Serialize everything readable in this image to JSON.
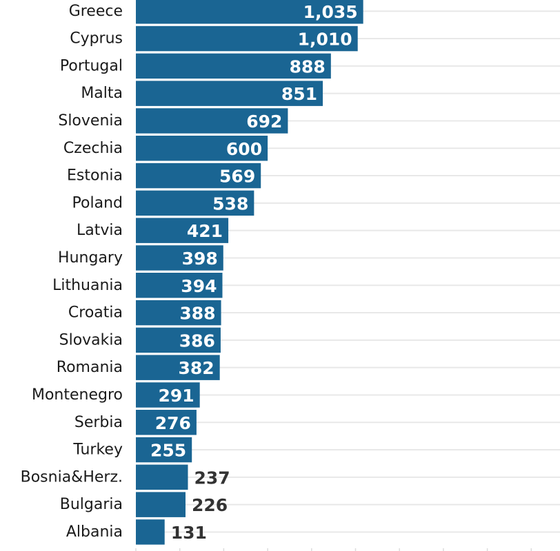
{
  "chart_data": {
    "type": "bar",
    "orientation": "horizontal",
    "title": "",
    "xlabel": "",
    "ylabel": "",
    "xlim": [
      0,
      1920
    ],
    "grid": true,
    "bar_color": "#1a6593",
    "label_inside_color": "#ffffff",
    "label_outside_color": "#333333",
    "categories": [
      "Greece",
      "Cyprus",
      "Portugal",
      "Malta",
      "Slovenia",
      "Czechia",
      "Estonia",
      "Poland",
      "Latvia",
      "Hungary",
      "Lithuania",
      "Croatia",
      "Slovakia",
      "Romania",
      "Montenegro",
      "Serbia",
      "Turkey",
      "Bosnia&Herz.",
      "Bulgaria",
      "Albania"
    ],
    "values": [
      1035,
      1010,
      888,
      851,
      692,
      600,
      569,
      538,
      421,
      398,
      394,
      388,
      386,
      382,
      291,
      276,
      255,
      237,
      226,
      131
    ],
    "value_labels": [
      "1,035",
      "1,010",
      "888",
      "851",
      "692",
      "600",
      "569",
      "538",
      "421",
      "398",
      "394",
      "388",
      "386",
      "382",
      "291",
      "276",
      "255",
      "237",
      "226",
      "131"
    ]
  }
}
